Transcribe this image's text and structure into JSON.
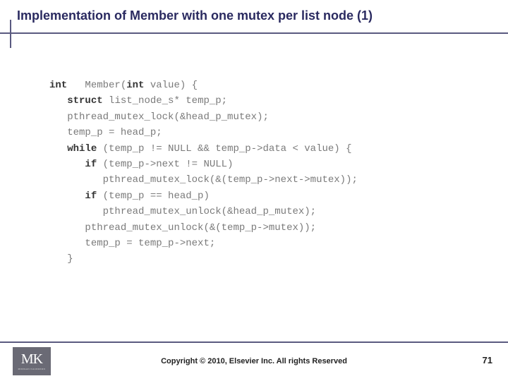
{
  "slide": {
    "title": "Implementation of Member with one mutex per list node (1)",
    "title_color": "#2a2a60",
    "underline_color": "#5a5a80",
    "background_color": "#ffffff"
  },
  "code": {
    "font_family": "Courier New",
    "font_size_pt": 11,
    "text_color": "#7a7a7a",
    "keyword_color": "#333333",
    "lines": [
      {
        "indent": 0,
        "tokens": [
          {
            "t": "int",
            "kw": true
          },
          {
            "t": "   Member("
          },
          {
            "t": "int",
            "kw": true
          },
          {
            "t": " value) {"
          }
        ]
      },
      {
        "indent": 1,
        "tokens": [
          {
            "t": "struct",
            "kw": true
          },
          {
            "t": " list_node_s* temp_p;"
          }
        ]
      },
      {
        "indent": 0,
        "tokens": [
          {
            "t": ""
          }
        ]
      },
      {
        "indent": 1,
        "tokens": [
          {
            "t": "pthread_mutex_lock(&head_p_mutex);"
          }
        ]
      },
      {
        "indent": 1,
        "tokens": [
          {
            "t": "temp_p = head_p;"
          }
        ]
      },
      {
        "indent": 1,
        "tokens": [
          {
            "t": "while",
            "kw": true
          },
          {
            "t": " (temp_p != NULL && temp_p->data < value) {"
          }
        ]
      },
      {
        "indent": 2,
        "tokens": [
          {
            "t": "if",
            "kw": true
          },
          {
            "t": " (temp_p->next != NULL)"
          }
        ]
      },
      {
        "indent": 3,
        "tokens": [
          {
            "t": "pthread_mutex_lock(&(temp_p->next->mutex));"
          }
        ]
      },
      {
        "indent": 2,
        "tokens": [
          {
            "t": "if",
            "kw": true
          },
          {
            "t": " (temp_p == head_p)"
          }
        ]
      },
      {
        "indent": 3,
        "tokens": [
          {
            "t": "pthread_mutex_unlock(&head_p_mutex);"
          }
        ]
      },
      {
        "indent": 2,
        "tokens": [
          {
            "t": "pthread_mutex_unlock(&(temp_p->mutex));"
          }
        ]
      },
      {
        "indent": 2,
        "tokens": [
          {
            "t": "temp_p = temp_p->next;"
          }
        ]
      },
      {
        "indent": 1,
        "tokens": [
          {
            "t": "}"
          }
        ]
      }
    ]
  },
  "footer": {
    "copyright": "Copyright © 2010, Elsevier Inc. All rights Reserved",
    "page_number": "71",
    "logo_main": "MK",
    "logo_sub": "MORGAN KAUFMANN",
    "logo_bg": "#6a6a75"
  }
}
